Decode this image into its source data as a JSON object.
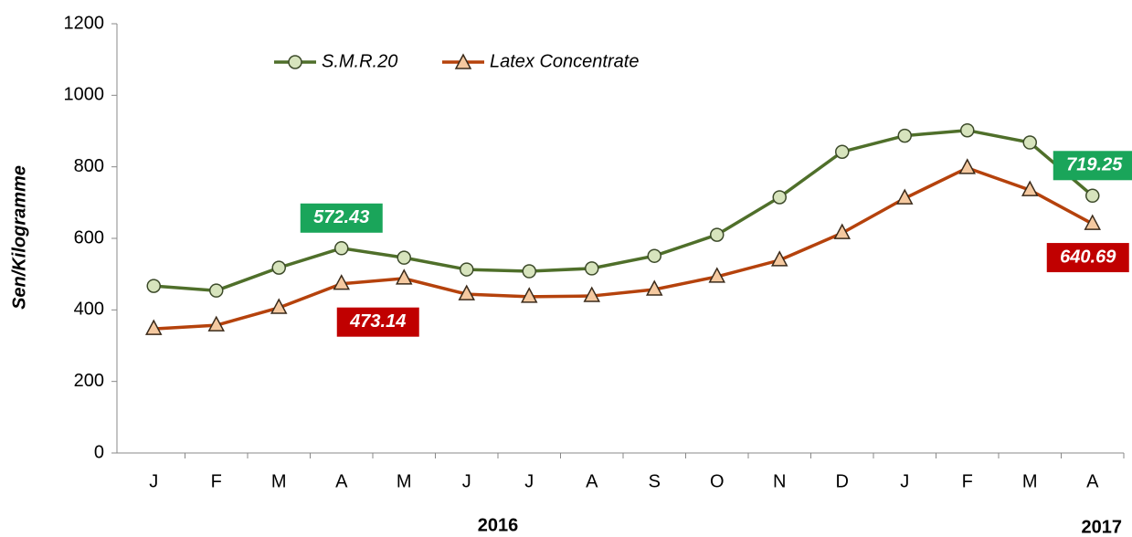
{
  "chart_data": {
    "type": "line",
    "y_axis_label": "Sen/Kilogramme",
    "categories": [
      "J",
      "F",
      "M",
      "A",
      "M",
      "J",
      "J",
      "A",
      "S",
      "O",
      "N",
      "D",
      "J",
      "F",
      "M",
      "A"
    ],
    "year_labels": [
      "2016",
      "2017"
    ],
    "series": [
      {
        "name": "S.M.R.20",
        "color": "#4f6f2a",
        "marker_fill": "#d7e4bd",
        "label_color": "#1aa55a",
        "values": [
          467,
          454,
          518,
          572.43,
          546,
          513,
          508,
          516,
          551,
          610,
          715,
          842,
          887,
          902,
          868,
          719.25
        ],
        "value_labels": [
          null,
          null,
          null,
          "572.43",
          null,
          null,
          null,
          null,
          null,
          null,
          null,
          null,
          null,
          null,
          null,
          "719.25"
        ]
      },
      {
        "name": "Latex Concentrate",
        "color": "#b5420c",
        "marker_fill": "#f5c9a0",
        "label_color": "#c00000",
        "values": [
          347,
          357,
          406,
          473.14,
          488,
          444,
          437,
          439,
          457,
          493,
          539,
          615,
          712,
          797,
          735,
          640.69
        ],
        "value_labels": [
          null,
          null,
          null,
          "473.14",
          null,
          null,
          null,
          null,
          null,
          null,
          null,
          null,
          null,
          null,
          null,
          "640.69"
        ]
      }
    ],
    "ylim": [
      0,
      1200
    ],
    "yticks": [
      0,
      200,
      400,
      600,
      800,
      1000,
      1200
    ],
    "grid": false
  }
}
